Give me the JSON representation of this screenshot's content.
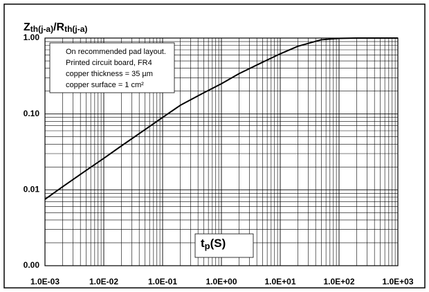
{
  "chart_data": {
    "type": "line",
    "ylabel": [
      "Z",
      "th(j-a)",
      "/R",
      "th(j-a)"
    ],
    "xlabel": [
      "t",
      "p",
      "(S)"
    ],
    "annotation": [
      "On recommended pad layout.",
      "Printed circuit board, FR4",
      "copper thickness = 35 µm",
      "copper surface = 1 cm²"
    ],
    "x": [
      0.001,
      0.002,
      0.005,
      0.01,
      0.02,
      0.05,
      0.1,
      0.2,
      0.5,
      1,
      2,
      5,
      10,
      20,
      50,
      100,
      200,
      500,
      1000
    ],
    "series": [
      {
        "color": "#000000",
        "values": [
          0.0075,
          0.011,
          0.018,
          0.026,
          0.038,
          0.062,
          0.09,
          0.13,
          0.19,
          0.25,
          0.34,
          0.48,
          0.62,
          0.78,
          0.95,
          0.99,
          1,
          1,
          1
        ]
      }
    ],
    "xlog": true,
    "ylog": true,
    "grid": true,
    "xlim": [
      0.001,
      1000
    ],
    "xticks": [
      {
        "value": 0.001,
        "label": "1.0E-03"
      },
      {
        "value": 0.01,
        "label": "1.0E-02"
      },
      {
        "value": 0.1,
        "label": "1.0E-01"
      },
      {
        "value": 1,
        "label": "1.0E+00"
      },
      {
        "value": 10,
        "label": "1.0E+01"
      },
      {
        "value": 100,
        "label": "1.0E+02"
      },
      {
        "value": 1000,
        "label": "1.0E+03"
      }
    ],
    "ylim": [
      0.001,
      1
    ],
    "yticks": [
      {
        "value": 0.001,
        "label": "0.00"
      },
      {
        "value": 0.01,
        "label": "0.01"
      },
      {
        "value": 0.1,
        "label": "0.10"
      },
      {
        "value": 1,
        "label": "1.00"
      }
    ]
  }
}
